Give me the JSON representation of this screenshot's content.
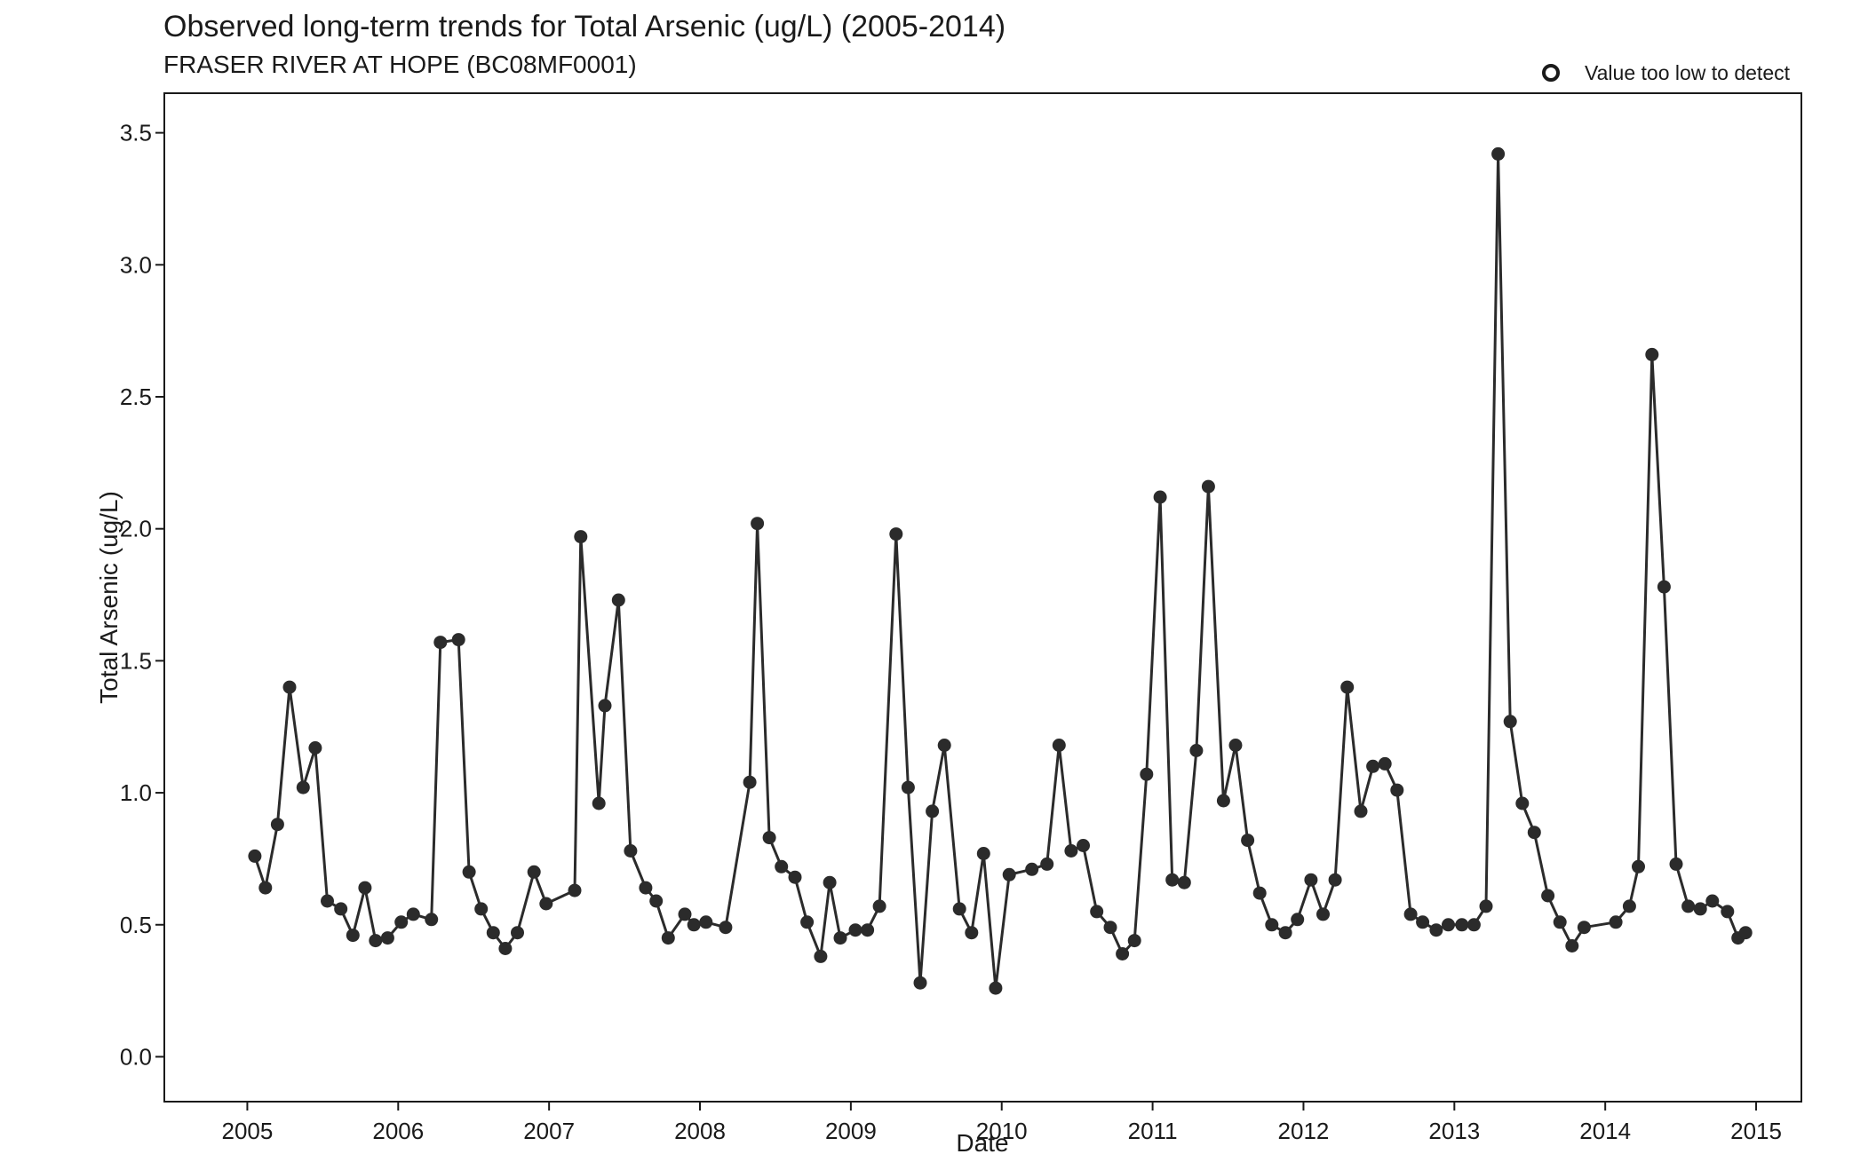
{
  "chart_data": {
    "type": "line",
    "title": "Observed long-term trends for Total Arsenic (ug/L) (2005-2014)",
    "subtitle": "FRASER RIVER AT HOPE (BC08MF0001)",
    "xlabel": "Date",
    "ylabel": "Total Arsenic (ug/L)",
    "xlim": [
      2004.45,
      2015.3
    ],
    "ylim": [
      -0.17,
      3.65
    ],
    "x_ticks": [
      2005,
      2006,
      2007,
      2008,
      2009,
      2010,
      2011,
      2012,
      2013,
      2014,
      2015
    ],
    "y_ticks": [
      0.0,
      0.5,
      1.0,
      1.5,
      2.0,
      2.5,
      3.0,
      3.5
    ],
    "y_tick_labels": [
      "0.0",
      "0.5",
      "1.0",
      "1.5",
      "2.0",
      "2.5",
      "3.0",
      "3.5"
    ],
    "grid": false,
    "legend": {
      "position": "top-right",
      "entries": [
        {
          "label": "Value too low to detect",
          "marker": "open-circle"
        }
      ]
    },
    "series": [
      {
        "marker": "filled-circle",
        "color": "#2b2b2b",
        "points": [
          [
            2005.05,
            0.76
          ],
          [
            2005.12,
            0.64
          ],
          [
            2005.2,
            0.88
          ],
          [
            2005.28,
            1.4
          ],
          [
            2005.37,
            1.02
          ],
          [
            2005.45,
            1.17
          ],
          [
            2005.53,
            0.59
          ],
          [
            2005.62,
            0.56
          ],
          [
            2005.7,
            0.46
          ],
          [
            2005.78,
            0.64
          ],
          [
            2005.85,
            0.44
          ],
          [
            2005.93,
            0.45
          ],
          [
            2006.02,
            0.51
          ],
          [
            2006.1,
            0.54
          ],
          [
            2006.22,
            0.52
          ],
          [
            2006.28,
            1.57
          ],
          [
            2006.4,
            1.58
          ],
          [
            2006.47,
            0.7
          ],
          [
            2006.55,
            0.56
          ],
          [
            2006.63,
            0.47
          ],
          [
            2006.71,
            0.41
          ],
          [
            2006.79,
            0.47
          ],
          [
            2006.9,
            0.7
          ],
          [
            2006.98,
            0.58
          ],
          [
            2007.17,
            0.63
          ],
          [
            2007.21,
            1.97
          ],
          [
            2007.33,
            0.96
          ],
          [
            2007.37,
            1.33
          ],
          [
            2007.46,
            1.73
          ],
          [
            2007.54,
            0.78
          ],
          [
            2007.64,
            0.64
          ],
          [
            2007.71,
            0.59
          ],
          [
            2007.79,
            0.45
          ],
          [
            2007.9,
            0.54
          ],
          [
            2007.96,
            0.5
          ],
          [
            2008.04,
            0.51
          ],
          [
            2008.17,
            0.49
          ],
          [
            2008.33,
            1.04
          ],
          [
            2008.38,
            2.02
          ],
          [
            2008.46,
            0.83
          ],
          [
            2008.54,
            0.72
          ],
          [
            2008.63,
            0.68
          ],
          [
            2008.71,
            0.51
          ],
          [
            2008.8,
            0.38
          ],
          [
            2008.86,
            0.66
          ],
          [
            2008.93,
            0.45
          ],
          [
            2009.03,
            0.48
          ],
          [
            2009.11,
            0.48
          ],
          [
            2009.19,
            0.57
          ],
          [
            2009.3,
            1.98
          ],
          [
            2009.38,
            1.02
          ],
          [
            2009.46,
            0.28
          ],
          [
            2009.54,
            0.93
          ],
          [
            2009.62,
            1.18
          ],
          [
            2009.72,
            0.56
          ],
          [
            2009.8,
            0.47
          ],
          [
            2009.88,
            0.77
          ],
          [
            2009.96,
            0.26
          ],
          [
            2010.05,
            0.69
          ],
          [
            2010.2,
            0.71
          ],
          [
            2010.3,
            0.73
          ],
          [
            2010.38,
            1.18
          ],
          [
            2010.46,
            0.78
          ],
          [
            2010.54,
            0.8
          ],
          [
            2010.63,
            0.55
          ],
          [
            2010.72,
            0.49
          ],
          [
            2010.8,
            0.39
          ],
          [
            2010.88,
            0.44
          ],
          [
            2010.96,
            1.07
          ],
          [
            2011.05,
            2.12
          ],
          [
            2011.13,
            0.67
          ],
          [
            2011.21,
            0.66
          ],
          [
            2011.29,
            1.16
          ],
          [
            2011.37,
            2.16
          ],
          [
            2011.47,
            0.97
          ],
          [
            2011.55,
            1.18
          ],
          [
            2011.63,
            0.82
          ],
          [
            2011.71,
            0.62
          ],
          [
            2011.79,
            0.5
          ],
          [
            2011.88,
            0.47
          ],
          [
            2011.96,
            0.52
          ],
          [
            2012.05,
            0.67
          ],
          [
            2012.13,
            0.54
          ],
          [
            2012.21,
            0.67
          ],
          [
            2012.29,
            1.4
          ],
          [
            2012.38,
            0.93
          ],
          [
            2012.46,
            1.1
          ],
          [
            2012.54,
            1.11
          ],
          [
            2012.62,
            1.01
          ],
          [
            2012.71,
            0.54
          ],
          [
            2012.79,
            0.51
          ],
          [
            2012.88,
            0.48
          ],
          [
            2012.96,
            0.5
          ],
          [
            2013.05,
            0.5
          ],
          [
            2013.13,
            0.5
          ],
          [
            2013.21,
            0.57
          ],
          [
            2013.29,
            3.42
          ],
          [
            2013.37,
            1.27
          ],
          [
            2013.45,
            0.96
          ],
          [
            2013.53,
            0.85
          ],
          [
            2013.62,
            0.61
          ],
          [
            2013.7,
            0.51
          ],
          [
            2013.78,
            0.42
          ],
          [
            2013.86,
            0.49
          ],
          [
            2014.07,
            0.51
          ],
          [
            2014.16,
            0.57
          ],
          [
            2014.22,
            0.72
          ],
          [
            2014.31,
            2.66
          ],
          [
            2014.39,
            1.78
          ],
          [
            2014.47,
            0.73
          ],
          [
            2014.55,
            0.57
          ],
          [
            2014.63,
            0.56
          ],
          [
            2014.71,
            0.59
          ],
          [
            2014.81,
            0.55
          ],
          [
            2014.88,
            0.45
          ],
          [
            2014.93,
            0.47
          ]
        ]
      }
    ]
  }
}
